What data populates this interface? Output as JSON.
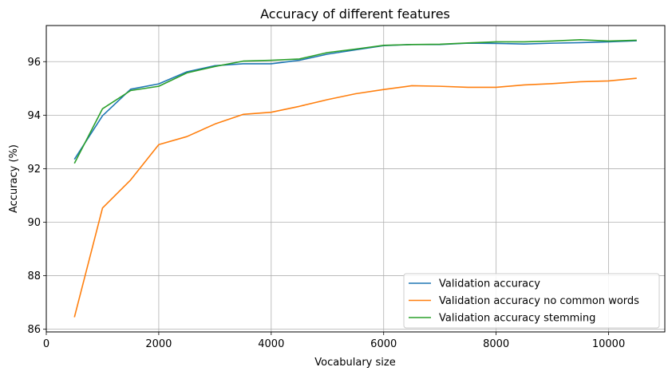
{
  "chart_data": {
    "type": "line",
    "title": "Accuracy of different features",
    "xlabel": "Vocabulary size",
    "ylabel": "Accuracy (%)",
    "xlim": [
      0,
      11000
    ],
    "ylim": [
      85.9,
      97.35
    ],
    "xticks": [
      0,
      2000,
      4000,
      6000,
      8000,
      10000
    ],
    "yticks": [
      86,
      88,
      90,
      92,
      94,
      96
    ],
    "grid": true,
    "legend_position": "lower-right",
    "x": [
      500,
      1000,
      1500,
      2000,
      2500,
      3000,
      3500,
      4000,
      4500,
      5000,
      5500,
      6000,
      6500,
      7000,
      7500,
      8000,
      8500,
      9000,
      9500,
      10000,
      10500
    ],
    "series": [
      {
        "name": "Validation accuracy",
        "color": "#1f77b4",
        "values": [
          92.35,
          93.98,
          94.97,
          95.17,
          95.62,
          95.85,
          95.92,
          95.92,
          96.05,
          96.28,
          96.44,
          96.6,
          96.64,
          96.64,
          96.69,
          96.68,
          96.66,
          96.69,
          96.71,
          96.74,
          96.78
        ]
      },
      {
        "name": "Validation accuracy no common words",
        "color": "#ff7f0e",
        "values": [
          86.45,
          90.53,
          91.58,
          92.9,
          93.2,
          93.67,
          94.03,
          94.11,
          94.33,
          94.58,
          94.8,
          94.96,
          95.1,
          95.08,
          95.04,
          95.04,
          95.13,
          95.18,
          95.25,
          95.28,
          95.38
        ]
      },
      {
        "name": "Validation accuracy stemming",
        "color": "#2ca02c",
        "values": [
          92.2,
          94.24,
          94.92,
          95.08,
          95.58,
          95.82,
          96.02,
          96.05,
          96.1,
          96.34,
          96.47,
          96.61,
          96.64,
          96.65,
          96.7,
          96.74,
          96.74,
          96.77,
          96.82,
          96.77,
          96.8
        ]
      }
    ]
  }
}
